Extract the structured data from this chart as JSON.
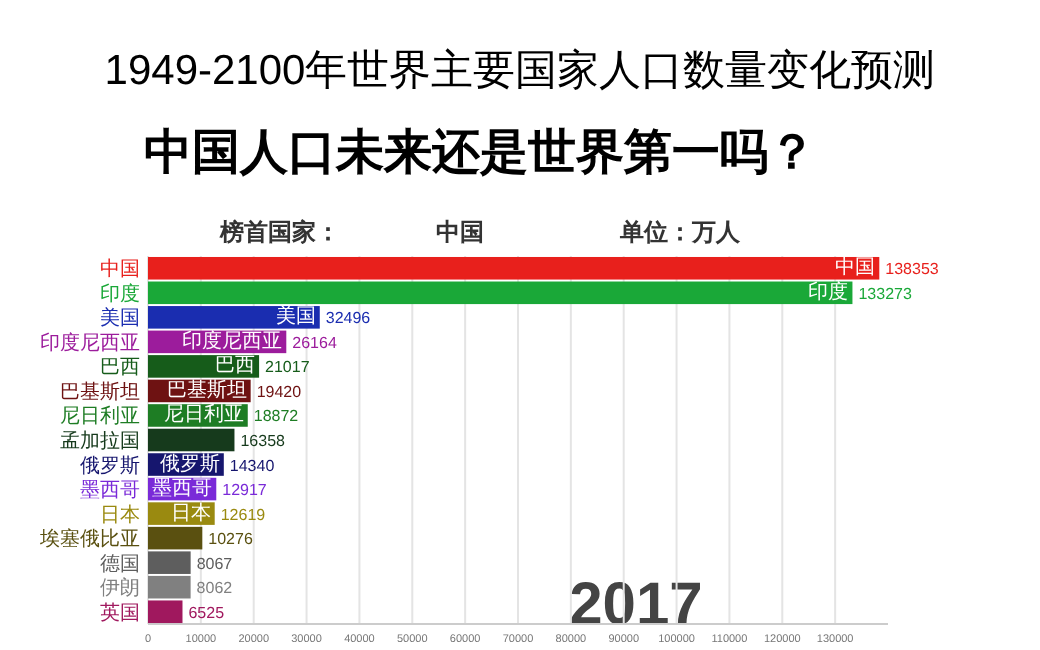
{
  "chart_data": {
    "type": "bar",
    "orientation": "horizontal",
    "title": "1949-2100年世界主要国家人口数量变化预测",
    "subtitle": "中国人口未来还是世界第一吗？",
    "annotations": [
      "榜首国家：",
      "中国",
      "单位：万人",
      "2017"
    ],
    "categories": [
      "中国",
      "印度",
      "美国",
      "印度尼西亚",
      "巴西",
      "巴基斯坦",
      "尼日利亚",
      "孟加拉国",
      "俄罗斯",
      "墨西哥",
      "日本",
      "埃塞俄比亚",
      "德国",
      "伊朗",
      "英国"
    ],
    "values": [
      138353,
      133273,
      32496,
      26164,
      21017,
      19420,
      18872,
      16358,
      14340,
      12917,
      12619,
      10276,
      8067,
      8062,
      6525
    ],
    "colors": [
      "#e8201c",
      "#1aa838",
      "#1a2db0",
      "#9c1c9c",
      "#165c1a",
      "#6e1212",
      "#1e7d24",
      "#163a1c",
      "#16166e",
      "#7a2ad8",
      "#9a8a10",
      "#5a5010",
      "#5e5e5e",
      "#808080",
      "#a0185e"
    ],
    "xlim": [
      0,
      140000
    ],
    "xticks": [
      0,
      10000,
      20000,
      30000,
      40000,
      50000,
      60000,
      70000,
      80000,
      90000,
      100000,
      110000,
      120000,
      130000
    ],
    "grid": "x",
    "data_labels": true
  }
}
